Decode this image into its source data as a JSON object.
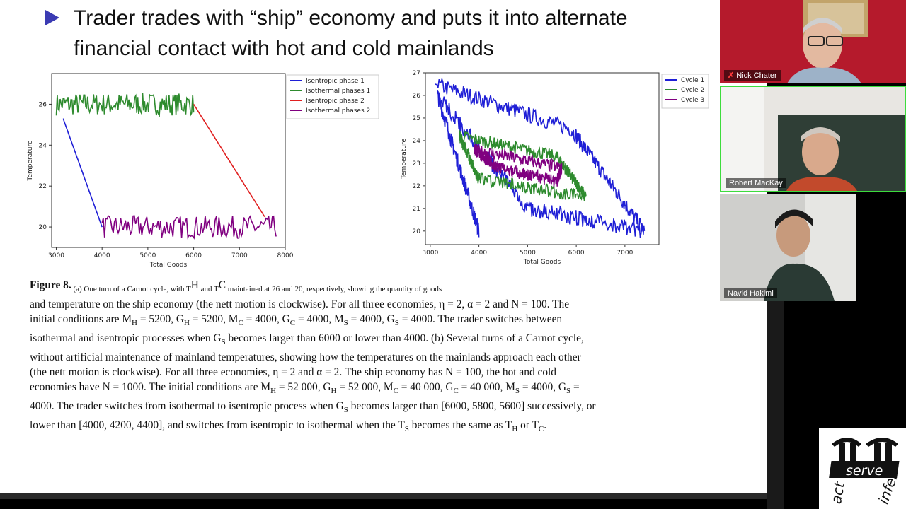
{
  "slide": {
    "title_lines": [
      "Trader trades with “ship” economy and puts it into alternate",
      "financial contact with hot and cold mainlands"
    ],
    "caption_lines": [
      [
        "Figure 8.",
        " (a) One turn of a Carnot cycle, with T",
        "H",
        " and T",
        "C",
        " maintained at 26 and 20, respectively, showing the quantity of goods"
      ],
      [
        "and temperature on the ship economy (the nett motion is clockwise). For all three economies, η = 2, α = 2 and N = 100. The"
      ],
      [
        "initial conditions are M",
        "H",
        " = 5200, G",
        "H",
        " = 5200, M",
        "C",
        " = 4000, G",
        "C",
        " = 4000, M",
        "S",
        " = 4000, G",
        "S",
        " = 4000. The trader switches between"
      ],
      [
        "isothermal and isentropic processes when G",
        "S",
        " becomes larger than 6000 or lower than 4000. (b) Several turns of a Carnot cycle,"
      ],
      [
        "without artificial maintenance of mainland temperatures, showing how the temperatures on the mainlands approach each other"
      ],
      [
        "(the nett motion is clockwise). For all three economies, η = 2 and α = 2. The ship economy has N = 100, the hot and cold"
      ],
      [
        "economies have N = 1000. The initial conditions are M",
        "H",
        " = 52 000, G",
        "H",
        " = 52 000, M",
        "C",
        " = 40 000, G",
        "C",
        " = 40 000, M",
        "S",
        " = 4000, G",
        "S",
        " ="
      ],
      [
        "4000. The trader switches from isothermal to isentropic process when G",
        "S",
        " becomes larger than [6000, 5800, 5600] successively, or"
      ],
      [
        "lower than [4000, 4200, 4400], and switches from isentropic to isothermal when the T",
        "S",
        " becomes the same as T",
        "H",
        " or T",
        "C",
        "."
      ]
    ]
  },
  "participants": [
    {
      "name": "Nick Chater",
      "muted": true,
      "icon": "mic-muted-icon"
    },
    {
      "name": "Robert MacKay",
      "muted": false,
      "active_speaker": true
    },
    {
      "name": "Navid Hakimi",
      "muted": false
    }
  ],
  "logo": {
    "words": [
      "serve",
      "act",
      "infer"
    ]
  },
  "chart_data": [
    {
      "type": "line",
      "xlabel": "Total Goods",
      "ylabel": "Temperature",
      "xlim": [
        2900,
        8000
      ],
      "ylim": [
        19.0,
        27.5
      ],
      "xticks": [
        "3000",
        "4000",
        "5000",
        "6000",
        "7000",
        "8000"
      ],
      "yticks": [
        "20",
        "22",
        "24",
        "26"
      ],
      "legend_position": "right",
      "series": [
        {
          "name": "Isentropic phase 1",
          "color": "#1f1fd6",
          "x": [
            4000,
            3150
          ],
          "y": [
            20.0,
            25.3
          ]
        },
        {
          "name": "Isothermal phases 1",
          "color": "#2e8b2e",
          "x": [
            3000,
            6000
          ],
          "y": [
            26.0,
            26.0
          ]
        },
        {
          "name": "Isentropic phase 2",
          "color": "#e02020",
          "x": [
            6000,
            7550
          ],
          "y": [
            26.0,
            20.5
          ]
        },
        {
          "name": "Isothermal phases 2",
          "color": "#800080",
          "x": [
            4000,
            7800
          ],
          "y": [
            20.0,
            20.0
          ]
        }
      ]
    },
    {
      "type": "line",
      "xlabel": "Total Goods",
      "ylabel": "Temperature",
      "xlim": [
        2900,
        7700
      ],
      "ylim": [
        19.4,
        27.0
      ],
      "xticks": [
        "3000",
        "4000",
        "5000",
        "6000",
        "7000"
      ],
      "yticks": [
        "20",
        "21",
        "22",
        "23",
        "24",
        "25",
        "26",
        "27"
      ],
      "legend_position": "right",
      "series": [
        {
          "name": "Cycle 1",
          "color": "#1f1fd6",
          "x": [
            3100,
            5900,
            7400,
            5000,
            3150,
            4000
          ],
          "y": [
            26.5,
            24.5,
            20.0,
            21.0,
            26.0,
            20.0
          ]
        },
        {
          "name": "Cycle 2",
          "color": "#2e8b2e",
          "x": [
            3600,
            5600,
            6200,
            4000,
            3600
          ],
          "y": [
            24.2,
            23.3,
            21.5,
            22.3,
            24.2
          ]
        },
        {
          "name": "Cycle 3",
          "color": "#800080",
          "x": [
            3900,
            5700,
            5600,
            4400,
            3900
          ],
          "y": [
            23.6,
            22.8,
            22.2,
            22.8,
            23.6
          ]
        }
      ]
    }
  ]
}
